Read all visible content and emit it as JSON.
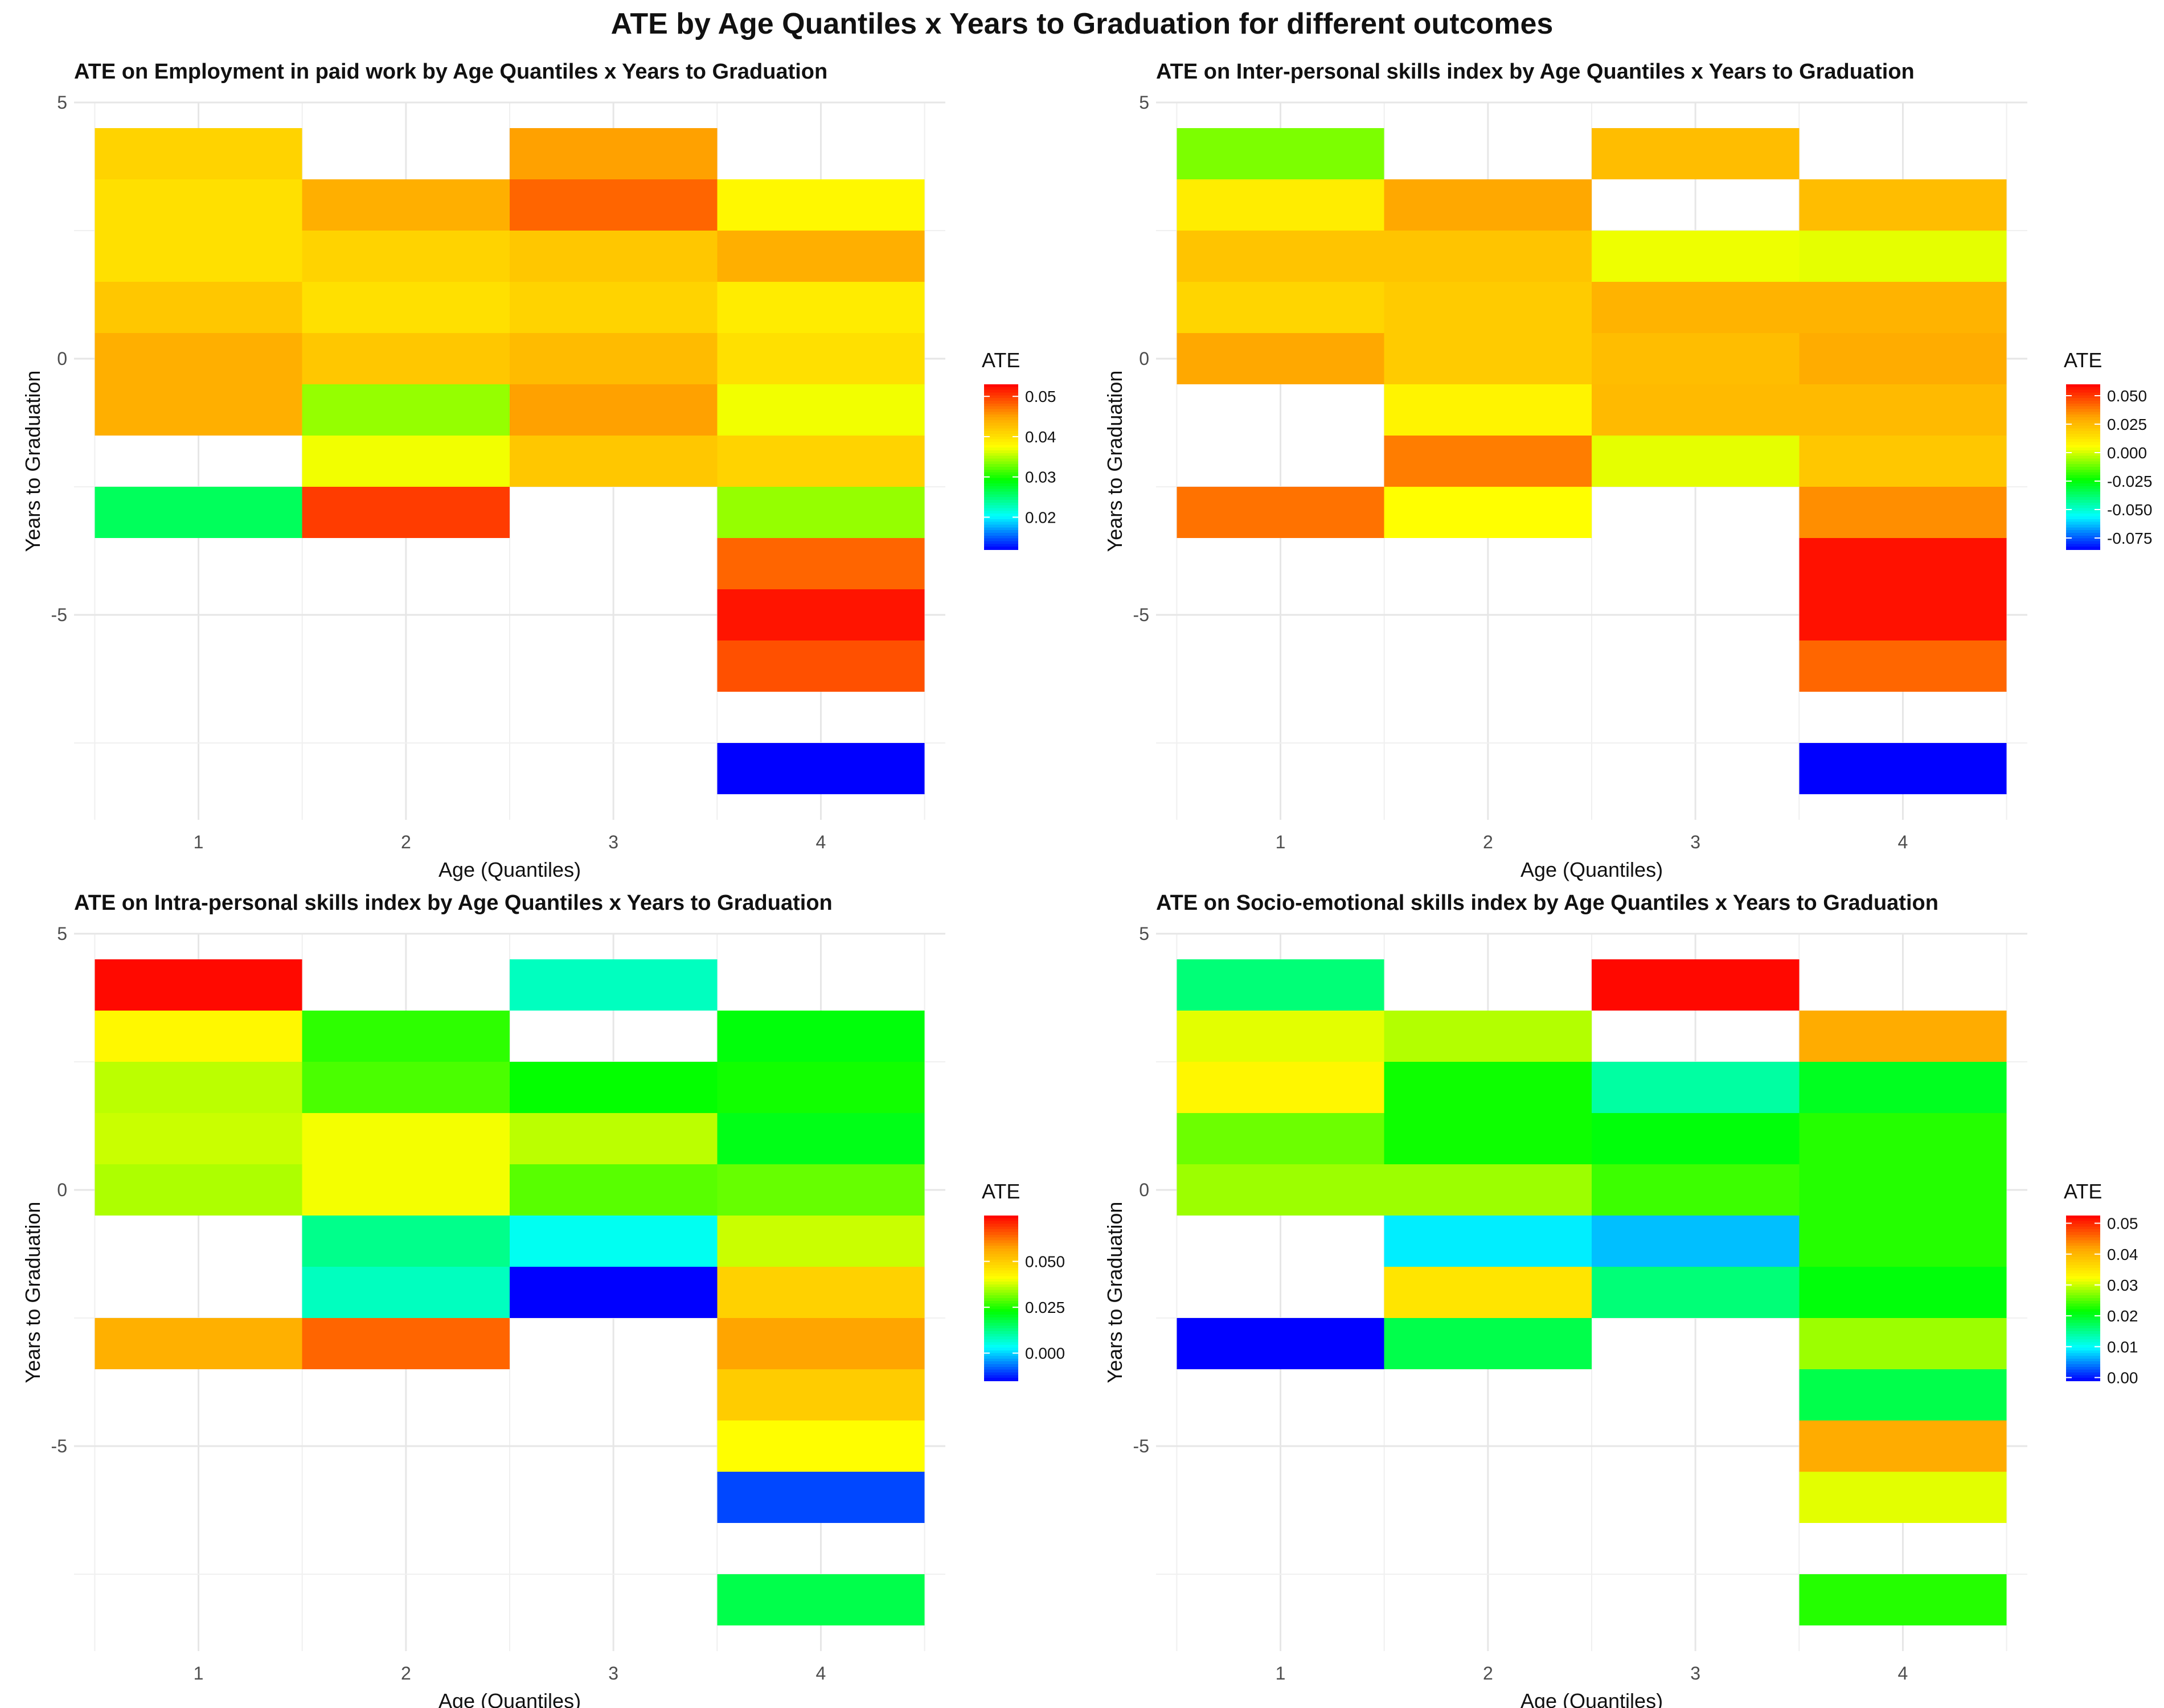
{
  "title": "ATE by Age Quantiles x Years to Graduation for different outcomes",
  "chart_data": [
    {
      "type": "heatmap",
      "title": "ATE on Employment in paid work by Age Quantiles x Years to Graduation",
      "xlabel": "Age (Quantiles)",
      "ylabel": "Years to Graduation",
      "x_categories": [
        1,
        2,
        3,
        4
      ],
      "y_ticks": [
        5,
        0,
        -5
      ],
      "ylim": [
        -9,
        5
      ],
      "legend": {
        "title": "ATE",
        "placement": "right",
        "min": 0.012,
        "max": 0.053,
        "ticks": [
          0.02,
          0.03,
          0.04,
          0.05
        ],
        "labels": [
          "0.02",
          "0.03",
          "0.04",
          "0.05"
        ]
      },
      "cells": [
        {
          "x": 1,
          "y": 4,
          "value": 0.041
        },
        {
          "x": 1,
          "y": 3,
          "value": 0.04
        },
        {
          "x": 1,
          "y": 2,
          "value": 0.04
        },
        {
          "x": 1,
          "y": 1,
          "value": 0.042
        },
        {
          "x": 1,
          "y": 0,
          "value": 0.044
        },
        {
          "x": 1,
          "y": -1,
          "value": 0.044
        },
        {
          "x": 1,
          "y": -3,
          "value": 0.026
        },
        {
          "x": 2,
          "y": 3,
          "value": 0.044
        },
        {
          "x": 2,
          "y": 2,
          "value": 0.041
        },
        {
          "x": 2,
          "y": 1,
          "value": 0.04
        },
        {
          "x": 2,
          "y": 0,
          "value": 0.042
        },
        {
          "x": 2,
          "y": -1,
          "value": 0.034
        },
        {
          "x": 2,
          "y": -2,
          "value": 0.037
        },
        {
          "x": 2,
          "y": -3,
          "value": 0.05
        },
        {
          "x": 3,
          "y": 4,
          "value": 0.045
        },
        {
          "x": 3,
          "y": 3,
          "value": 0.048
        },
        {
          "x": 3,
          "y": 2,
          "value": 0.042
        },
        {
          "x": 3,
          "y": 1,
          "value": 0.041
        },
        {
          "x": 3,
          "y": 0,
          "value": 0.043
        },
        {
          "x": 3,
          "y": -1,
          "value": 0.045
        },
        {
          "x": 3,
          "y": -2,
          "value": 0.042
        },
        {
          "x": 4,
          "y": 3,
          "value": 0.038
        },
        {
          "x": 4,
          "y": 2,
          "value": 0.044
        },
        {
          "x": 4,
          "y": 1,
          "value": 0.039
        },
        {
          "x": 4,
          "y": 0,
          "value": 0.04
        },
        {
          "x": 4,
          "y": -1,
          "value": 0.037
        },
        {
          "x": 4,
          "y": -2,
          "value": 0.041
        },
        {
          "x": 4,
          "y": -3,
          "value": 0.034
        },
        {
          "x": 4,
          "y": -4,
          "value": 0.048
        },
        {
          "x": 4,
          "y": -5,
          "value": 0.052
        },
        {
          "x": 4,
          "y": -6,
          "value": 0.049
        },
        {
          "x": 4,
          "y": -8,
          "value": 0.012
        }
      ]
    },
    {
      "type": "heatmap",
      "title": "ATE on Inter-personal skills index by Age Quantiles x Years to Graduation",
      "xlabel": "Age (Quantiles)",
      "ylabel": "Years to Graduation",
      "x_categories": [
        1,
        2,
        3,
        4
      ],
      "y_ticks": [
        5,
        0,
        -5
      ],
      "ylim": [
        -9,
        5
      ],
      "legend": {
        "title": "ATE",
        "placement": "right",
        "min": -0.085,
        "max": 0.06,
        "ticks": [
          0.05,
          0.025,
          0.0,
          -0.025,
          -0.05,
          -0.075
        ],
        "labels": [
          "0.050",
          "0.025",
          "0.000",
          "-0.025",
          "-0.050",
          "-0.075"
        ]
      },
      "cells": [
        {
          "x": 1,
          "y": 4,
          "value": -0.01
        },
        {
          "x": 1,
          "y": 3,
          "value": 0.01
        },
        {
          "x": 1,
          "y": 2,
          "value": 0.022
        },
        {
          "x": 1,
          "y": 1,
          "value": 0.017
        },
        {
          "x": 1,
          "y": 0,
          "value": 0.03
        },
        {
          "x": 1,
          "y": -3,
          "value": 0.04
        },
        {
          "x": 2,
          "y": 3,
          "value": 0.03
        },
        {
          "x": 2,
          "y": 2,
          "value": 0.022
        },
        {
          "x": 2,
          "y": 1,
          "value": 0.02
        },
        {
          "x": 2,
          "y": 0,
          "value": 0.02
        },
        {
          "x": 2,
          "y": -1,
          "value": 0.008
        },
        {
          "x": 2,
          "y": -2,
          "value": 0.038
        },
        {
          "x": 2,
          "y": -3,
          "value": 0.005
        },
        {
          "x": 3,
          "y": 4,
          "value": 0.024
        },
        {
          "x": 3,
          "y": 2,
          "value": 0.003
        },
        {
          "x": 3,
          "y": 1,
          "value": 0.027
        },
        {
          "x": 3,
          "y": 0,
          "value": 0.024
        },
        {
          "x": 3,
          "y": -1,
          "value": 0.025
        },
        {
          "x": 3,
          "y": -2,
          "value": 0.002
        },
        {
          "x": 4,
          "y": 3,
          "value": 0.024
        },
        {
          "x": 4,
          "y": 2,
          "value": 0.002
        },
        {
          "x": 4,
          "y": 1,
          "value": 0.027
        },
        {
          "x": 4,
          "y": 0,
          "value": 0.029
        },
        {
          "x": 4,
          "y": -1,
          "value": 0.025
        },
        {
          "x": 4,
          "y": -2,
          "value": 0.021
        },
        {
          "x": 4,
          "y": -3,
          "value": 0.035
        },
        {
          "x": 4,
          "y": -4,
          "value": 0.057
        },
        {
          "x": 4,
          "y": -5,
          "value": 0.057
        },
        {
          "x": 4,
          "y": -6,
          "value": 0.042
        },
        {
          "x": 4,
          "y": -8,
          "value": -0.085
        }
      ]
    },
    {
      "type": "heatmap",
      "title": "ATE on Intra-personal skills index by Age Quantiles x Years to Graduation",
      "xlabel": "Age (Quantiles)",
      "ylabel": "Years to Graduation",
      "x_categories": [
        1,
        2,
        3,
        4
      ],
      "y_ticks": [
        5,
        0,
        -5
      ],
      "ylim": [
        -9,
        5
      ],
      "legend": {
        "title": "ATE",
        "placement": "right",
        "min": -0.015,
        "max": 0.075,
        "ticks": [
          0.05,
          0.025,
          0.0
        ],
        "labels": [
          "0.050",
          "0.025",
          "0.000"
        ]
      },
      "cells": [
        {
          "x": 1,
          "y": 4,
          "value": 0.074
        },
        {
          "x": 1,
          "y": 3,
          "value": 0.042
        },
        {
          "x": 1,
          "y": 2,
          "value": 0.036
        },
        {
          "x": 1,
          "y": 1,
          "value": 0.037
        },
        {
          "x": 1,
          "y": 0,
          "value": 0.035
        },
        {
          "x": 1,
          "y": -3,
          "value": 0.055
        },
        {
          "x": 2,
          "y": 3,
          "value": 0.026
        },
        {
          "x": 2,
          "y": 2,
          "value": 0.028
        },
        {
          "x": 2,
          "y": 1,
          "value": 0.04
        },
        {
          "x": 2,
          "y": 0,
          "value": 0.04
        },
        {
          "x": 2,
          "y": -1,
          "value": 0.012
        },
        {
          "x": 2,
          "y": -2,
          "value": 0.008
        },
        {
          "x": 2,
          "y": -3,
          "value": 0.064
        },
        {
          "x": 3,
          "y": 4,
          "value": 0.008
        },
        {
          "x": 3,
          "y": 2,
          "value": 0.023
        },
        {
          "x": 3,
          "y": 1,
          "value": 0.036
        },
        {
          "x": 3,
          "y": 0,
          "value": 0.029
        },
        {
          "x": 3,
          "y": -1,
          "value": 0.004
        },
        {
          "x": 3,
          "y": -2,
          "value": -0.015
        },
        {
          "x": 4,
          "y": 3,
          "value": 0.022
        },
        {
          "x": 4,
          "y": 2,
          "value": 0.024
        },
        {
          "x": 4,
          "y": 1,
          "value": 0.021
        },
        {
          "x": 4,
          "y": 0,
          "value": 0.03
        },
        {
          "x": 4,
          "y": -1,
          "value": 0.037
        },
        {
          "x": 4,
          "y": -2,
          "value": 0.049
        },
        {
          "x": 4,
          "y": -3,
          "value": 0.057
        },
        {
          "x": 4,
          "y": -4,
          "value": 0.05
        },
        {
          "x": 4,
          "y": -5,
          "value": 0.041
        },
        {
          "x": 4,
          "y": -6,
          "value": -0.01
        },
        {
          "x": 4,
          "y": -8,
          "value": 0.017
        }
      ]
    },
    {
      "type": "heatmap",
      "title": "ATE on Socio-emotional skills index by Age Quantiles x Years to Graduation",
      "xlabel": "Age (Quantiles)",
      "ylabel": "Years to Graduation",
      "x_categories": [
        1,
        2,
        3,
        4
      ],
      "y_ticks": [
        5,
        0,
        -5
      ],
      "ylim": [
        -9,
        5
      ],
      "legend": {
        "title": "ATE",
        "placement": "right",
        "min": -0.001,
        "max": 0.0525,
        "ticks": [
          0.05,
          0.04,
          0.03,
          0.02,
          0.01,
          0.0
        ],
        "labels": [
          "0.05",
          "0.04",
          "0.03",
          "0.02",
          "0.01",
          "0.00"
        ]
      },
      "cells": [
        {
          "x": 1,
          "y": 4,
          "value": 0.016
        },
        {
          "x": 1,
          "y": 3,
          "value": 0.031
        },
        {
          "x": 1,
          "y": 2,
          "value": 0.033
        },
        {
          "x": 1,
          "y": 1,
          "value": 0.026
        },
        {
          "x": 1,
          "y": 0,
          "value": 0.028
        },
        {
          "x": 1,
          "y": -3,
          "value": -0.001
        },
        {
          "x": 2,
          "y": 3,
          "value": 0.029
        },
        {
          "x": 2,
          "y": 2,
          "value": 0.022
        },
        {
          "x": 2,
          "y": 1,
          "value": 0.022
        },
        {
          "x": 2,
          "y": 0,
          "value": 0.028
        },
        {
          "x": 2,
          "y": -1,
          "value": 0.009
        },
        {
          "x": 2,
          "y": -2,
          "value": 0.035
        },
        {
          "x": 2,
          "y": -3,
          "value": 0.018
        },
        {
          "x": 3,
          "y": 4,
          "value": 0.052
        },
        {
          "x": 3,
          "y": 2,
          "value": 0.014
        },
        {
          "x": 3,
          "y": 1,
          "value": 0.021
        },
        {
          "x": 3,
          "y": 0,
          "value": 0.024
        },
        {
          "x": 3,
          "y": -1,
          "value": 0.007
        },
        {
          "x": 3,
          "y": -2,
          "value": 0.016
        },
        {
          "x": 4,
          "y": 3,
          "value": 0.041
        },
        {
          "x": 4,
          "y": 2,
          "value": 0.02
        },
        {
          "x": 4,
          "y": 1,
          "value": 0.023
        },
        {
          "x": 4,
          "y": 0,
          "value": 0.023
        },
        {
          "x": 4,
          "y": -1,
          "value": 0.023
        },
        {
          "x": 4,
          "y": -2,
          "value": 0.021
        },
        {
          "x": 4,
          "y": -3,
          "value": 0.028
        },
        {
          "x": 4,
          "y": -4,
          "value": 0.018
        },
        {
          "x": 4,
          "y": -5,
          "value": 0.041
        },
        {
          "x": 4,
          "y": -6,
          "value": 0.031
        },
        {
          "x": 4,
          "y": -8,
          "value": 0.023
        }
      ]
    }
  ]
}
